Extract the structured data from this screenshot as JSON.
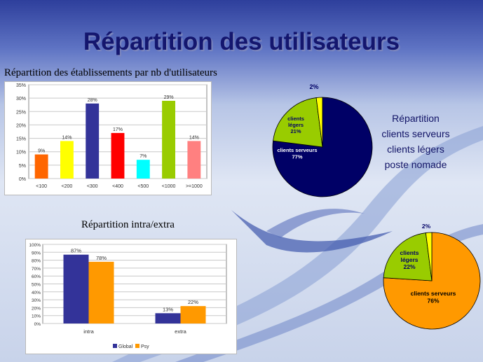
{
  "slide": {
    "title": "Répartition des utilisateurs"
  },
  "colors": {
    "title": "#14166e",
    "navy": "#000066",
    "green": "#99cc00",
    "yellow": "#ffff00",
    "orange": "#ff9900",
    "blue": "#333399"
  },
  "pie_legend": [
    "Répartition",
    "clients serveurs",
    "clients légers",
    "poste nomade"
  ],
  "chart_data": [
    {
      "type": "bar",
      "title": "Répartition des établissements par nb d'utilisateurs",
      "categories": [
        "<100",
        "<200",
        "<300",
        "<400",
        "<500",
        "<1000",
        ">=1000"
      ],
      "values": [
        9,
        14,
        28,
        17,
        7,
        29,
        14
      ],
      "value_labels": [
        "9%",
        "14%",
        "28%",
        "17%",
        "7%",
        "29%",
        "14%"
      ],
      "bar_colors": [
        "#ff6600",
        "#ffff00",
        "#333399",
        "#ff0000",
        "#00ffff",
        "#99cc00",
        "#ff8080"
      ],
      "ylim": [
        0,
        35
      ],
      "yticks": [
        "0%",
        "5%",
        "10%",
        "15%",
        "20%",
        "25%",
        "30%",
        "35%"
      ],
      "grid": true
    },
    {
      "type": "bar",
      "title": "Répartition intra/extra",
      "categories": [
        "intra",
        "extra"
      ],
      "series": [
        {
          "name": "Global",
          "color": "#333399",
          "values": [
            87,
            13
          ],
          "labels": [
            "87%",
            "13%"
          ]
        },
        {
          "name": "Psy",
          "color": "#ff9900",
          "values": [
            78,
            22
          ],
          "labels": [
            "78%",
            "22%"
          ]
        }
      ],
      "ylim": [
        0,
        100
      ],
      "yticks": [
        "0%",
        "10%",
        "20%",
        "30%",
        "40%",
        "50%",
        "60%",
        "70%",
        "80%",
        "90%",
        "100%"
      ],
      "legend": "bottom",
      "grid": true
    },
    {
      "type": "pie",
      "slices": [
        {
          "label": "clients serveurs",
          "value": 77,
          "text": "77%",
          "color": "#000066"
        },
        {
          "label": "clients légers",
          "value": 21,
          "text": "21%",
          "color": "#99cc00"
        },
        {
          "label": "",
          "value": 2,
          "text": "2%",
          "color": "#ffff00"
        }
      ]
    },
    {
      "type": "pie",
      "slices": [
        {
          "label": "clients serveurs",
          "value": 76,
          "text": "76%",
          "color": "#ff9900"
        },
        {
          "label": "clients légers",
          "value": 22,
          "text": "22%",
          "color": "#99cc00"
        },
        {
          "label": "",
          "value": 2,
          "text": "2%",
          "color": "#ffff00"
        }
      ]
    }
  ]
}
